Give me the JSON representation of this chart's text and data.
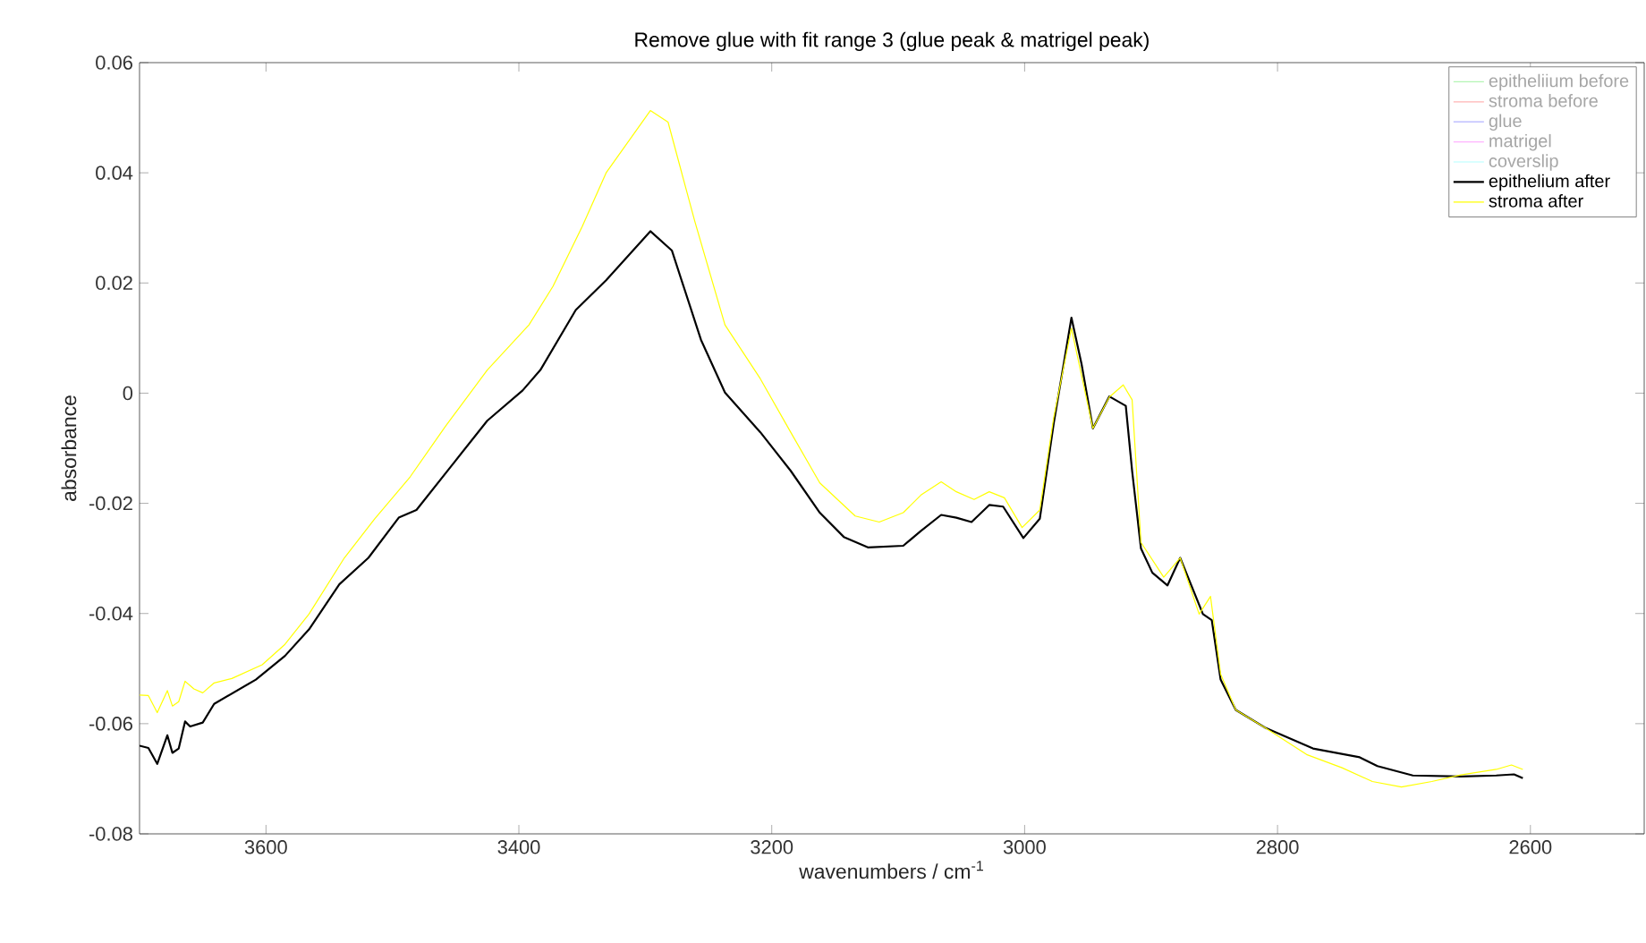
{
  "chart_data": {
    "type": "line",
    "title": "Remove glue with fit range 3 (glue peak & matrigel peak)",
    "xlabel": "wavenumbers / cm$^{-1}$",
    "ylabel": "absorbance",
    "xlim": [
      3700,
      2510
    ],
    "ylim": [
      -0.08,
      0.06
    ],
    "xticks": [
      3600,
      3400,
      3200,
      3000,
      2800,
      2600
    ],
    "yticks": [
      -0.08,
      -0.06,
      -0.04,
      -0.02,
      0,
      0.02,
      0.04,
      0.06
    ],
    "legend": "top right",
    "series": [
      {
        "name": "epitheliium before",
        "color": "#b3f5b3"
      },
      {
        "name": "stroma before",
        "color": "#ffb3b3"
      },
      {
        "name": "glue",
        "color": "#b3b3ff"
      },
      {
        "name": "matrigel",
        "color": "#ffb3ff"
      },
      {
        "name": "coverslip",
        "color": "#b3ffff"
      },
      {
        "name": "epithelium after",
        "color": "#000000",
        "x": [
          3700,
          3693,
          3686,
          3678,
          3674,
          3669,
          3664,
          3660,
          3650,
          3641,
          3608,
          3585,
          3566,
          3542,
          3519,
          3495,
          3481,
          3453,
          3425,
          3397,
          3383,
          3355,
          3331,
          3296,
          3279,
          3256,
          3237,
          3209,
          3185,
          3162,
          3143,
          3124,
          3096,
          3082,
          3066,
          3054,
          3042,
          3028,
          3017,
          3001,
          2988,
          2977,
          2963,
          2955,
          2946,
          2933,
          2920,
          2915,
          2908,
          2899,
          2887,
          2877,
          2859,
          2852,
          2845,
          2833,
          2810,
          2772,
          2735,
          2721,
          2693,
          2655,
          2627,
          2613,
          2606
        ],
        "values": [
          -0.064,
          -0.0644,
          -0.0673,
          -0.0621,
          -0.0653,
          -0.0645,
          -0.0596,
          -0.0605,
          -0.0598,
          -0.0564,
          -0.052,
          -0.0477,
          -0.0429,
          -0.0347,
          -0.0299,
          -0.0226,
          -0.0212,
          -0.0131,
          -0.005,
          0.0005,
          0.0042,
          0.0151,
          0.0205,
          0.0294,
          0.0259,
          0.0097,
          0.0001,
          -0.0071,
          -0.0141,
          -0.0217,
          -0.0261,
          -0.028,
          -0.0277,
          -0.025,
          -0.0221,
          -0.0226,
          -0.0234,
          -0.0203,
          -0.0206,
          -0.0263,
          -0.0228,
          -0.0055,
          0.0137,
          0.0053,
          -0.0064,
          -0.0006,
          -0.0023,
          -0.0141,
          -0.0282,
          -0.0326,
          -0.0349,
          -0.0299,
          -0.0401,
          -0.0412,
          -0.052,
          -0.0575,
          -0.0607,
          -0.0645,
          -0.0661,
          -0.0677,
          -0.0694,
          -0.0696,
          -0.0694,
          -0.0692,
          -0.0699
        ]
      },
      {
        "name": "stroma after",
        "color": "#ffff00",
        "x": [
          3700,
          3693,
          3686,
          3678,
          3674,
          3669,
          3664,
          3657,
          3650,
          3641,
          3627,
          3603,
          3585,
          3566,
          3538,
          3514,
          3486,
          3458,
          3425,
          3392,
          3373,
          3350,
          3331,
          3296,
          3282,
          3261,
          3237,
          3209,
          3185,
          3162,
          3134,
          3115,
          3096,
          3082,
          3066,
          3054,
          3040,
          3028,
          3016,
          3002,
          2988,
          2977,
          2963,
          2946,
          2933,
          2922,
          2915,
          2908,
          2890,
          2877,
          2862,
          2853,
          2845,
          2833,
          2810,
          2777,
          2749,
          2725,
          2702,
          2678,
          2655,
          2627,
          2615,
          2606
        ],
        "values": [
          -0.0548,
          -0.0549,
          -0.058,
          -0.054,
          -0.0568,
          -0.056,
          -0.0523,
          -0.0537,
          -0.0544,
          -0.0526,
          -0.0518,
          -0.0493,
          -0.0456,
          -0.0401,
          -0.0299,
          -0.0228,
          -0.0152,
          -0.006,
          0.0042,
          0.0124,
          0.0194,
          0.0302,
          0.04,
          0.0513,
          0.0492,
          0.0313,
          0.0124,
          0.0026,
          -0.0071,
          -0.0163,
          -0.0223,
          -0.0234,
          -0.0217,
          -0.0185,
          -0.0161,
          -0.0179,
          -0.0193,
          -0.0179,
          -0.019,
          -0.0244,
          -0.0212,
          -0.0044,
          0.0118,
          -0.0064,
          -0.0007,
          0.0015,
          -0.0012,
          -0.0271,
          -0.0334,
          -0.0299,
          -0.0401,
          -0.0369,
          -0.051,
          -0.0575,
          -0.0607,
          -0.0656,
          -0.068,
          -0.0705,
          -0.0715,
          -0.0705,
          -0.0693,
          -0.0683,
          -0.0675,
          -0.0683
        ]
      }
    ]
  }
}
